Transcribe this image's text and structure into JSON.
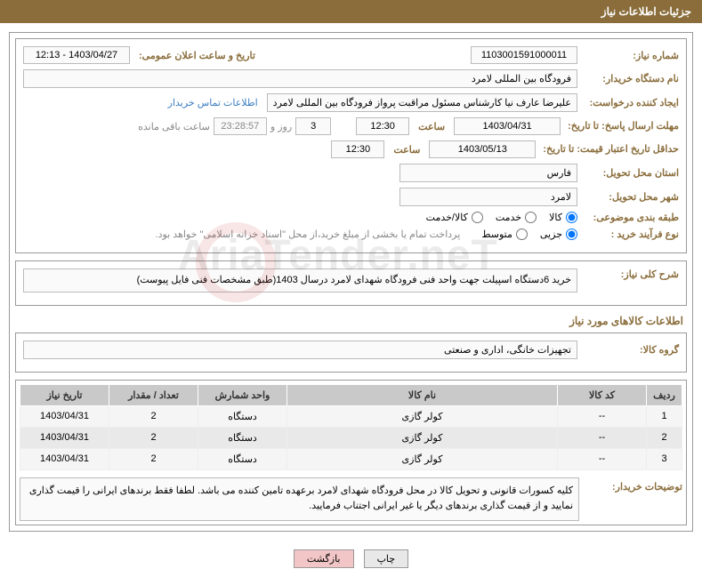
{
  "header": {
    "title": "جزئیات اطلاعات نیاز"
  },
  "form": {
    "need_no_label": "شماره نیاز:",
    "need_no": "1103001591000011",
    "announce_label": "تاریخ و ساعت اعلان عمومی:",
    "announce_value": "1403/04/27 - 12:13",
    "buyer_org_label": "نام دستگاه خریدار:",
    "buyer_org": "فرودگاه بین المللی لامرد",
    "requester_label": "ایجاد کننده درخواست:",
    "requester": "علیرضا عارف نیا کارشناس مسئول مراقبت پرواز فرودگاه بین المللی لامرد",
    "contact_link": "اطلاعات تماس خریدار",
    "deadline_label": "مهلت ارسال پاسخ: تا تاریخ:",
    "deadline_date": "1403/04/31",
    "time_label": "ساعت",
    "deadline_time": "12:30",
    "days_count": "3",
    "days_and": "روز و",
    "countdown": "23:28:57",
    "remaining": "ساعت باقی مانده",
    "validity_label": "حداقل تاریخ اعتبار قیمت: تا تاریخ:",
    "validity_date": "1403/05/13",
    "validity_time": "12:30",
    "province_label": "استان محل تحویل:",
    "province": "فارس",
    "city_label": "شهر محل تحویل:",
    "city": "لامرد",
    "category_label": "طبقه بندی موضوعی:",
    "cat_goods": "کالا",
    "cat_service": "خدمت",
    "cat_both": "کالا/خدمت",
    "purchase_type_label": "نوع فرآیند خرید :",
    "pt_partial": "جزیی",
    "pt_medium": "متوسط",
    "purchase_note": "پرداخت تمام یا بخشی از مبلغ خرید،از محل \"اسناد خزانه اسلامی\" خواهد بود.",
    "general_desc_label": "شرح کلی نیاز:",
    "general_desc": "خرید 6دستگاه اسپیلت  جهت واحد فنی  فرودگاه شهدای لامرد درسال 1403(طبق مشخصات فنی فایل پیوست)"
  },
  "goods_section": {
    "title": "اطلاعات کالاهای مورد نیاز",
    "group_label": "گروه کالا:",
    "group_value": "تجهیزات خانگی، اداری و صنعتی"
  },
  "table": {
    "headers": {
      "row": "ردیف",
      "code": "کد کالا",
      "name": "نام کالا",
      "unit": "واحد شمارش",
      "qty": "تعداد / مقدار",
      "date": "تاریخ نیاز"
    },
    "rows": [
      {
        "row": "1",
        "code": "--",
        "name": "کولر گازی",
        "unit": "دستگاه",
        "qty": "2",
        "date": "1403/04/31"
      },
      {
        "row": "2",
        "code": "--",
        "name": "کولر گازی",
        "unit": "دستگاه",
        "qty": "2",
        "date": "1403/04/31"
      },
      {
        "row": "3",
        "code": "--",
        "name": "کولر گازی",
        "unit": "دستگاه",
        "qty": "2",
        "date": "1403/04/31"
      }
    ]
  },
  "buyer_notes": {
    "label": "توضیحات خریدار:",
    "text": "کلیه کسورات قانونی و تحویل کالا در محل فرودگاه شهدای لامرد برعهده تامین کننده می باشد. لطفا فقط برندهای ایرانی  را قیمت گذاری نمایید و از قیمت گذاری برندهای دیگر یا غیر ایرانی اجتناب فرمایید."
  },
  "buttons": {
    "print": "چاپ",
    "back": "بازگشت"
  },
  "watermark": "AriaTender.neT"
}
